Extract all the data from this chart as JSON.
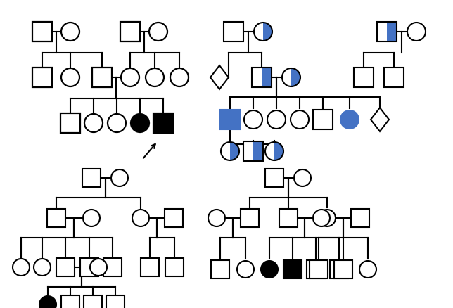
{
  "blue": "#4472c4",
  "background": "#ffffff",
  "lw": 1.5,
  "s": 0.028,
  "r": 0.019
}
